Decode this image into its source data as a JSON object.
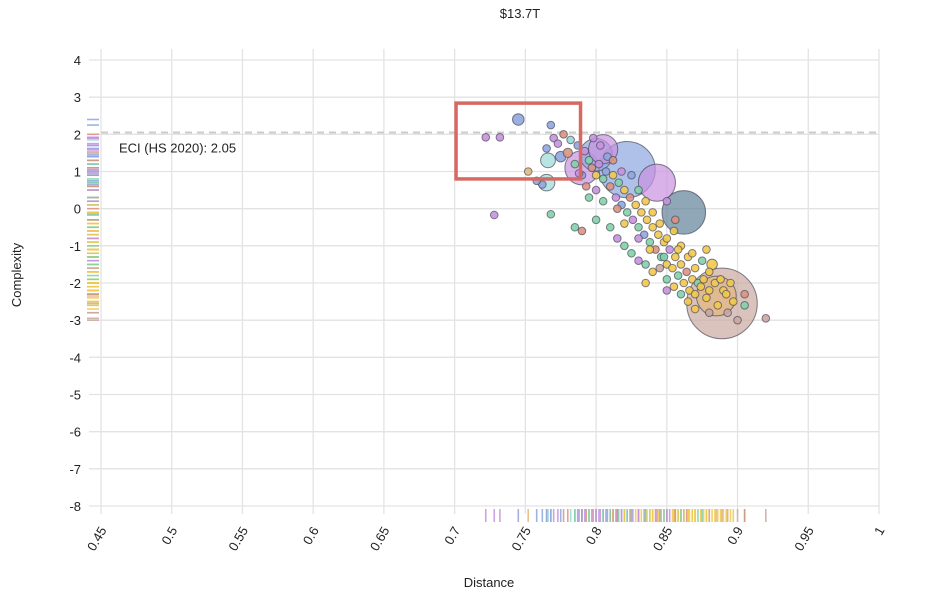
{
  "chart_data": {
    "type": "scatter",
    "title": "$13.7T",
    "xlabel": "Distance",
    "ylabel": "Complexity",
    "xlim": [
      0.45,
      1
    ],
    "ylim": [
      -8,
      4.3
    ],
    "x_ticks": [
      "0.45",
      "0.5",
      "0.55",
      "0.6",
      "0.65",
      "0.7",
      "0.75",
      "0.8",
      "0.85",
      "0.9",
      "0.95",
      "1"
    ],
    "y_ticks": [
      "4",
      "3",
      "2",
      "1",
      "0",
      "-1",
      "-2",
      "-3",
      "-4",
      "-5",
      "-6",
      "-7",
      "-8"
    ],
    "grid": true,
    "reference_line": {
      "y": 2.05,
      "label": "ECI (HS 2020): 2.05",
      "style": "dashed"
    },
    "highlight_box": {
      "x": [
        0.701,
        0.789
      ],
      "y": [
        0.8,
        2.84
      ],
      "color": "#d66a63"
    },
    "colors": [
      "#8fa6df",
      "#c792e0",
      "#7fd1a8",
      "#f2c94c",
      "#d9937f",
      "#9ad8d8",
      "#c9a9a0",
      "#e3b77f",
      "#5f8197"
    ],
    "points": [
      [
        0.889,
        -2.55,
        95,
        6
      ],
      [
        0.885,
        -2.35,
        30,
        7
      ],
      [
        0.862,
        -0.1,
        36,
        8
      ],
      [
        0.843,
        0.7,
        26,
        1
      ],
      [
        0.822,
        1.05,
        60,
        0
      ],
      [
        0.805,
        1.6,
        16,
        1
      ],
      [
        0.8,
        1.45,
        20,
        0
      ],
      [
        0.79,
        1.1,
        22,
        1
      ],
      [
        0.765,
        0.7,
        5,
        5
      ],
      [
        0.766,
        1.3,
        4,
        5
      ],
      [
        0.745,
        2.4,
        2.4,
        0
      ],
      [
        0.722,
        1.92,
        1,
        1
      ],
      [
        0.732,
        1.92,
        1,
        1
      ],
      [
        0.752,
        1.0,
        1,
        7
      ],
      [
        0.728,
        -0.17,
        1,
        1
      ],
      [
        0.768,
        -0.15,
        1,
        2
      ],
      [
        0.765,
        1.62,
        1,
        0
      ],
      [
        0.777,
        2.0,
        1,
        4
      ],
      [
        0.78,
        1.5,
        1.5,
        4
      ],
      [
        0.775,
        1.4,
        2,
        0
      ],
      [
        0.762,
        0.65,
        1,
        0
      ],
      [
        0.785,
        -0.5,
        1,
        2
      ],
      [
        0.79,
        -0.6,
        1,
        4
      ],
      [
        0.835,
        -2.0,
        1,
        3
      ],
      [
        0.85,
        -2.2,
        1,
        1
      ],
      [
        0.92,
        -2.95,
        1,
        6
      ],
      [
        0.905,
        -2.6,
        1,
        2
      ],
      [
        0.77,
        1.9,
        1,
        1
      ],
      [
        0.773,
        1.75,
        1,
        1
      ],
      [
        0.768,
        2.25,
        1,
        0
      ],
      [
        0.782,
        1.85,
        1,
        5
      ],
      [
        0.758,
        0.75,
        1,
        0
      ],
      [
        0.787,
        1.7,
        1,
        0
      ],
      [
        0.792,
        1.55,
        1,
        1
      ],
      [
        0.795,
        1.3,
        1,
        2
      ],
      [
        0.797,
        1.1,
        1,
        4
      ],
      [
        0.8,
        0.9,
        1,
        3
      ],
      [
        0.802,
        1.2,
        1,
        1
      ],
      [
        0.805,
        0.8,
        1,
        2
      ],
      [
        0.807,
        1.0,
        1,
        0
      ],
      [
        0.81,
        0.6,
        1,
        4
      ],
      [
        0.812,
        0.9,
        1,
        3
      ],
      [
        0.814,
        0.3,
        1,
        1
      ],
      [
        0.816,
        0.7,
        1,
        2
      ],
      [
        0.818,
        0.1,
        1,
        0
      ],
      [
        0.82,
        0.5,
        1,
        3
      ],
      [
        0.822,
        -0.1,
        1,
        2
      ],
      [
        0.824,
        0.3,
        1,
        4
      ],
      [
        0.826,
        -0.3,
        1,
        1
      ],
      [
        0.828,
        0.1,
        1,
        3
      ],
      [
        0.83,
        -0.5,
        1,
        2
      ],
      [
        0.832,
        -0.1,
        1,
        3
      ],
      [
        0.834,
        -0.7,
        1,
        0
      ],
      [
        0.836,
        -0.3,
        1,
        3
      ],
      [
        0.838,
        -0.9,
        1,
        2
      ],
      [
        0.84,
        -0.5,
        1,
        3
      ],
      [
        0.842,
        -1.1,
        1,
        4
      ],
      [
        0.844,
        -0.7,
        1,
        3
      ],
      [
        0.846,
        -1.3,
        1,
        2
      ],
      [
        0.848,
        -0.9,
        1,
        3
      ],
      [
        0.85,
        -1.5,
        1,
        3
      ],
      [
        0.852,
        -1.1,
        1,
        1
      ],
      [
        0.854,
        -1.6,
        1,
        3
      ],
      [
        0.856,
        -1.3,
        1,
        3
      ],
      [
        0.858,
        -1.8,
        1,
        2
      ],
      [
        0.86,
        -1.5,
        1,
        3
      ],
      [
        0.862,
        -2.0,
        1,
        3
      ],
      [
        0.864,
        -1.7,
        1,
        4
      ],
      [
        0.866,
        -2.2,
        1,
        3
      ],
      [
        0.868,
        -1.9,
        1,
        3
      ],
      [
        0.87,
        -2.3,
        1,
        3
      ],
      [
        0.872,
        -2.0,
        1,
        2
      ],
      [
        0.874,
        -2.1,
        1,
        3
      ],
      [
        0.876,
        -1.9,
        1,
        3
      ],
      [
        0.878,
        -2.4,
        1,
        3
      ],
      [
        0.88,
        -2.2,
        1,
        3
      ],
      [
        0.882,
        -1.5,
        2,
        3
      ],
      [
        0.884,
        -2.0,
        1,
        3
      ],
      [
        0.886,
        -2.6,
        1,
        3
      ],
      [
        0.888,
        -1.9,
        1,
        3
      ],
      [
        0.89,
        -2.2,
        1,
        3
      ],
      [
        0.892,
        -2.3,
        1,
        3
      ],
      [
        0.895,
        -2.0,
        1,
        3
      ],
      [
        0.81,
        -0.5,
        1,
        2
      ],
      [
        0.8,
        -0.3,
        1,
        2
      ],
      [
        0.815,
        -0.8,
        1,
        1
      ],
      [
        0.795,
        0.3,
        1,
        2
      ],
      [
        0.808,
        1.4,
        1,
        0
      ],
      [
        0.803,
        1.7,
        1,
        1
      ],
      [
        0.798,
        1.9,
        1,
        1
      ],
      [
        0.812,
        1.3,
        1,
        4
      ],
      [
        0.818,
        1.0,
        1,
        1
      ],
      [
        0.825,
        0.9,
        1,
        0
      ],
      [
        0.83,
        0.5,
        1,
        2
      ],
      [
        0.835,
        0.2,
        1,
        3
      ],
      [
        0.84,
        -0.1,
        1,
        3
      ],
      [
        0.845,
        -0.4,
        1,
        3
      ],
      [
        0.85,
        -0.8,
        1,
        3
      ],
      [
        0.855,
        -0.6,
        1,
        3
      ],
      [
        0.86,
        -1.0,
        1,
        3
      ],
      [
        0.865,
        -1.3,
        1,
        3
      ],
      [
        0.87,
        -1.6,
        1,
        3
      ],
      [
        0.875,
        -1.4,
        1,
        2
      ],
      [
        0.88,
        -1.7,
        1,
        3
      ],
      [
        0.82,
        -1.0,
        1,
        2
      ],
      [
        0.825,
        -1.2,
        1,
        2
      ],
      [
        0.83,
        -1.4,
        1,
        1
      ],
      [
        0.835,
        -1.5,
        1,
        2
      ],
      [
        0.84,
        -1.7,
        1,
        3
      ],
      [
        0.845,
        -1.6,
        1,
        6
      ],
      [
        0.85,
        -1.9,
        1,
        2
      ],
      [
        0.855,
        -2.1,
        1,
        3
      ],
      [
        0.86,
        -2.3,
        1,
        2
      ],
      [
        0.865,
        -2.5,
        1,
        3
      ],
      [
        0.87,
        -2.7,
        1,
        3
      ],
      [
        0.88,
        -2.8,
        1,
        6
      ],
      [
        0.893,
        -2.8,
        1,
        6
      ],
      [
        0.9,
        -3.0,
        1,
        6
      ],
      [
        0.905,
        -2.3,
        1,
        4
      ],
      [
        0.897,
        -2.5,
        1,
        3
      ],
      [
        0.8,
        0.5,
        1,
        1
      ],
      [
        0.805,
        0.2,
        1,
        2
      ],
      [
        0.79,
        0.9,
        1,
        0
      ],
      [
        0.793,
        0.6,
        1,
        4
      ],
      [
        0.785,
        1.2,
        1,
        2
      ],
      [
        0.788,
        0.95,
        1,
        1
      ],
      [
        0.815,
        0.0,
        1,
        4
      ],
      [
        0.82,
        -0.4,
        1,
        3
      ],
      [
        0.83,
        -0.8,
        1,
        1
      ],
      [
        0.838,
        -1.1,
        1,
        3
      ],
      [
        0.848,
        -1.3,
        1,
        2
      ],
      [
        0.858,
        -1.1,
        1,
        3
      ],
      [
        0.868,
        -1.2,
        1,
        3
      ],
      [
        0.878,
        -1.1,
        1,
        3
      ],
      [
        0.856,
        -0.3,
        1,
        4
      ],
      [
        0.85,
        0.2,
        1,
        1
      ]
    ]
  }
}
